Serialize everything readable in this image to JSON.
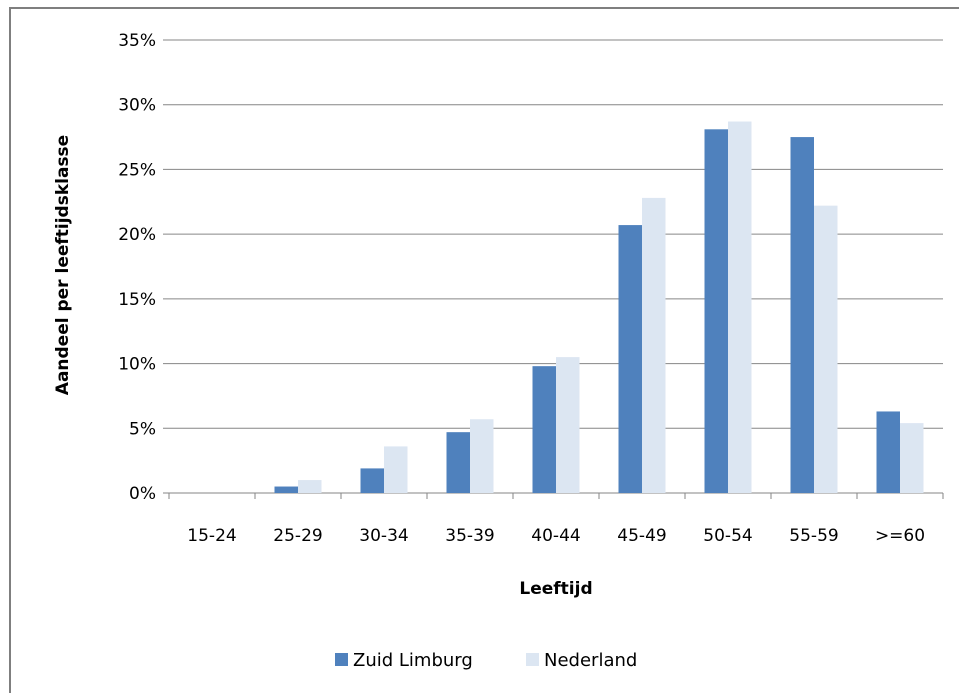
{
  "chart_data": {
    "type": "bar",
    "title": "",
    "xlabel": "Leeftijd",
    "ylabel": "Aandeel per leeftijdsklasse",
    "categories": [
      "15-24",
      "25-29",
      "30-34",
      "35-39",
      "40-44",
      "45-49",
      "50-54",
      "55-59",
      ">=60"
    ],
    "series": [
      {
        "name": "Zuid Limburg",
        "color": "#4f81bd",
        "values": [
          0.0,
          0.5,
          1.9,
          4.7,
          9.8,
          20.7,
          28.1,
          27.5,
          6.3
        ]
      },
      {
        "name": "Nederland",
        "color": "#dce6f2",
        "values": [
          0.0,
          1.0,
          3.6,
          5.7,
          10.5,
          22.8,
          28.7,
          22.2,
          5.4
        ]
      }
    ],
    "ylim": [
      0,
      35
    ],
    "yticks": [
      0,
      5,
      10,
      15,
      20,
      25,
      30,
      35
    ],
    "ytick_labels": [
      "0%",
      "5%",
      "10%",
      "15%",
      "20%",
      "25%",
      "30%",
      "35%"
    ],
    "grid": true,
    "legend_position": "bottom"
  }
}
